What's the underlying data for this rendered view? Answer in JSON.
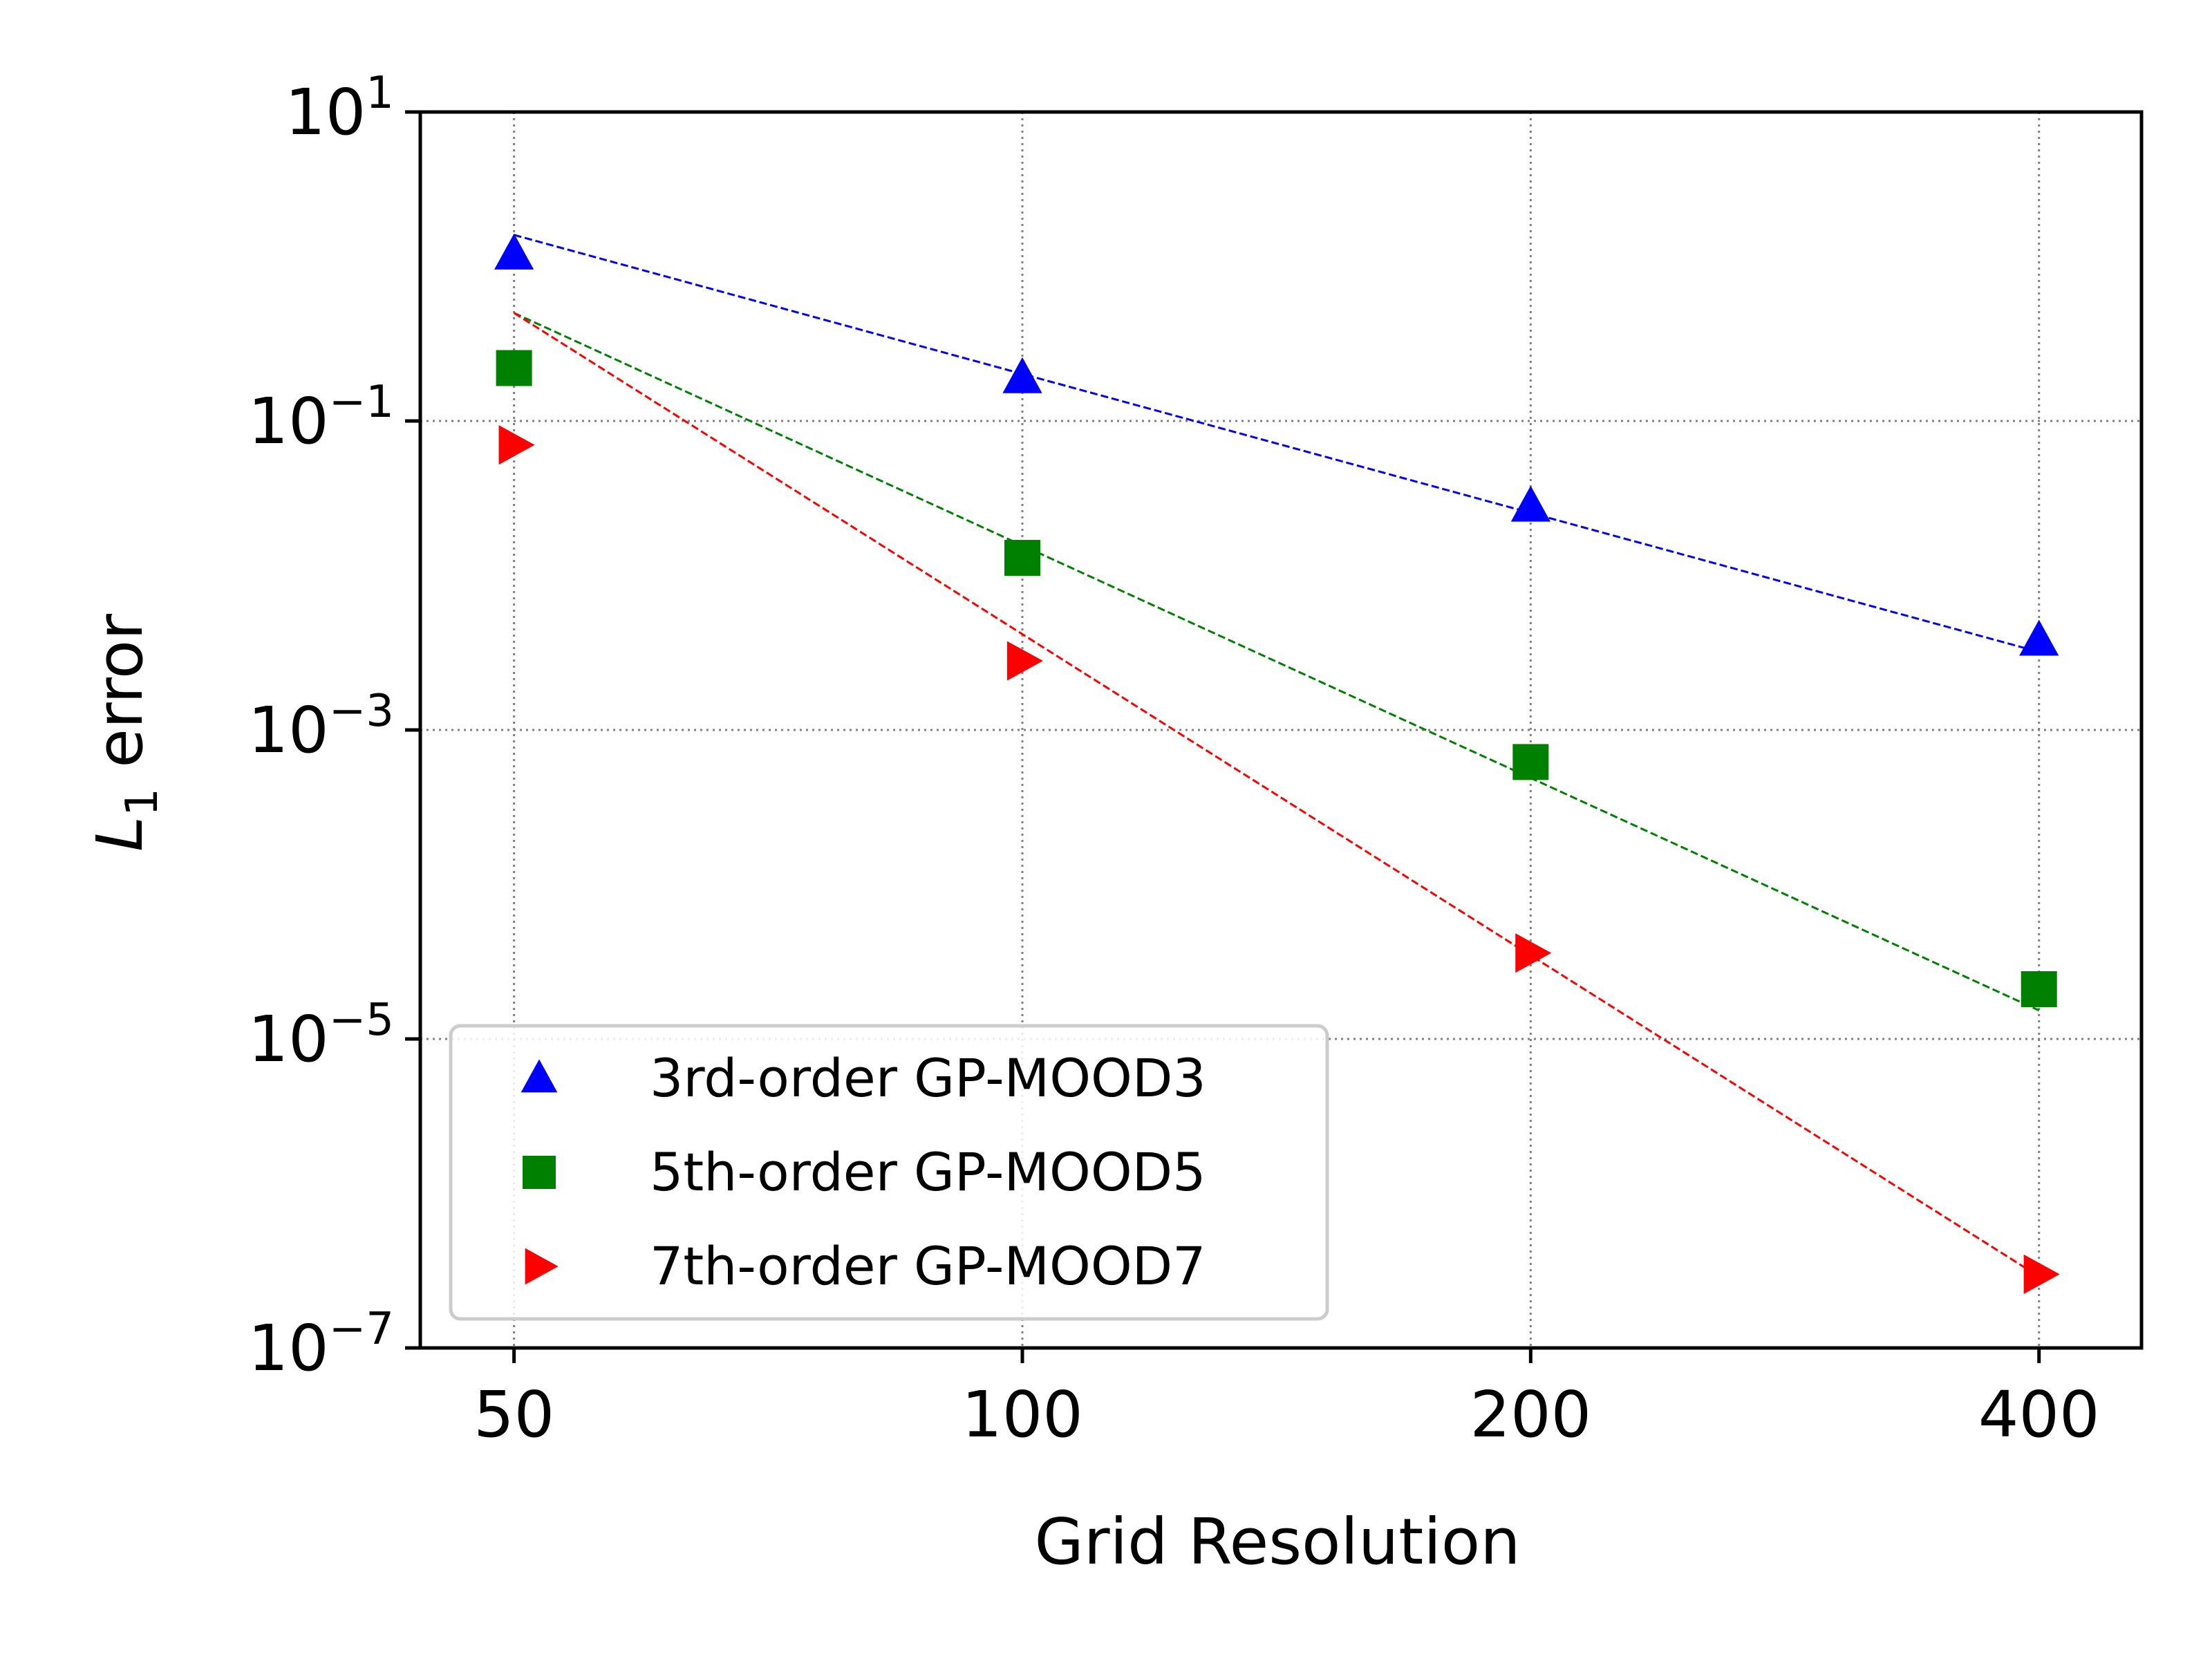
{
  "chart_data": {
    "type": "scatter",
    "xlabel": "Grid Resolution",
    "ylabel_main": "L",
    "ylabel_sub": "1",
    "ylabel_rest": " error",
    "x_scale": "log2",
    "y_scale": "log10",
    "xlim": [
      44,
      460
    ],
    "ylim": [
      1e-07,
      10
    ],
    "x_ticks": [
      {
        "value": 50,
        "label": "50"
      },
      {
        "value": 100,
        "label": "100"
      },
      {
        "value": 200,
        "label": "200"
      },
      {
        "value": 400,
        "label": "400"
      }
    ],
    "y_ticks": [
      {
        "value": 10,
        "base": "10",
        "exp": "1"
      },
      {
        "value": 0.1,
        "base": "10",
        "exp": "−1"
      },
      {
        "value": 0.001,
        "base": "10",
        "exp": "−3"
      },
      {
        "value": 1e-05,
        "base": "10",
        "exp": "−5"
      },
      {
        "value": 1e-07,
        "base": "10",
        "exp": "−7"
      }
    ],
    "grid": true,
    "legend_position": "lower-left",
    "x": [
      50,
      100,
      200,
      400
    ],
    "series": [
      {
        "name": "3rd-order GP-MOOD3",
        "color": "#0000ff",
        "marker": "triangle-up",
        "values": [
          1.2,
          0.19,
          0.028,
          0.0038
        ],
        "ref_line": {
          "x": [
            50,
            400
          ],
          "y": [
            1.6,
            0.0032
          ]
        }
      },
      {
        "name": "5th-order GP-MOOD5",
        "color": "#008000",
        "marker": "square",
        "values": [
          0.22,
          0.013,
          0.00062,
          2.1e-05
        ],
        "ref_line": {
          "x": [
            50,
            400
          ],
          "y": [
            0.5,
            1.53e-05
          ]
        }
      },
      {
        "name": "7th-order GP-MOOD7",
        "color": "#ff0000",
        "marker": "triangle-right",
        "values": [
          0.07,
          0.0028,
          3.6e-05,
          3e-07
        ],
        "ref_line": {
          "x": [
            50,
            400
          ],
          "y": [
            0.5,
            2.9e-07
          ]
        }
      }
    ]
  }
}
